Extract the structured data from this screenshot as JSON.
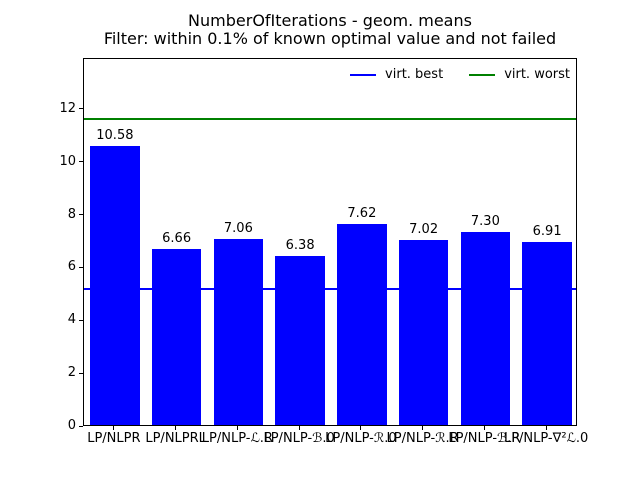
{
  "figure": {
    "title_line1": "NumberOfIterations - geom. means",
    "title_line2": "Filter: within 0.1% of known optimal value and not failed",
    "background_color": "#ffffff"
  },
  "chart_data": {
    "type": "bar",
    "title": "NumberOfIterations - geom. means",
    "subtitle": "Filter: within 0.1% of known optimal value and not failed",
    "categories": [
      "LP/NLPR",
      "LP/NLPRL",
      "LP/NLP-ℒ.R",
      "LP/NLP-ℬ.0",
      "LP/NLP-ℛ.0",
      "LP/NLP-ℛ.R",
      "LP/NLP-ℬ.R",
      "LP/NLP-∇²ℒ.0"
    ],
    "values": [
      10.58,
      6.66,
      7.06,
      6.38,
      7.62,
      7.02,
      7.3,
      6.91
    ],
    "bar_labels": [
      "10.58",
      "6.66",
      "7.06",
      "6.38",
      "7.62",
      "7.02",
      "7.30",
      "6.91"
    ],
    "bar_color": "#0000ff",
    "reference_lines": [
      {
        "label": "virt. best",
        "value": 5.22,
        "color": "#0000ff"
      },
      {
        "label": "virt. worst",
        "value": 11.64,
        "color": "#008000"
      }
    ],
    "legend_position": "upper right",
    "yticks": [
      0,
      2,
      4,
      6,
      8,
      10,
      12
    ],
    "ylim": [
      0,
      13.93
    ],
    "xlabel": "",
    "ylabel": "",
    "grid": false
  }
}
